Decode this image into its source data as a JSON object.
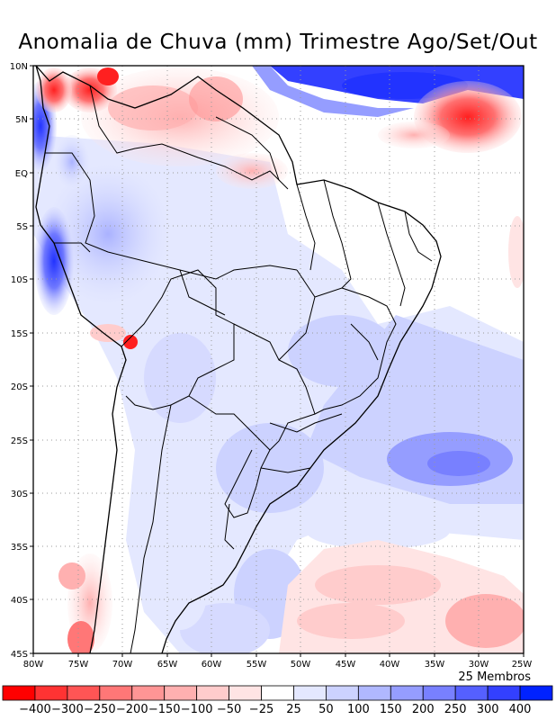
{
  "title": "Anomalia de Chuva (mm) Trimestre Ago/Set/Out",
  "members_label": "25 Membros",
  "latitude_labels": [
    "10N",
    "5N",
    "EQ",
    "5S",
    "10S",
    "15S",
    "20S",
    "25S",
    "30S",
    "35S",
    "40S",
    "45S"
  ],
  "longitude_labels": [
    "80W",
    "75W",
    "70W",
    "65W",
    "60W",
    "55W",
    "50W",
    "45W",
    "40W",
    "35W",
    "30W",
    "25W"
  ],
  "colorbar": {
    "tick_labels": [
      "-400",
      "-300",
      "-250",
      "-200",
      "-150",
      "-100",
      "-50",
      "-25",
      "25",
      "50",
      "100",
      "150",
      "200",
      "250",
      "300",
      "400"
    ],
    "colors": [
      "#ff0000",
      "#ff3333",
      "#ff5555",
      "#ff7777",
      "#ff9595",
      "#ffb0b0",
      "#ffcccc",
      "#ffe4e4",
      "#ffffff",
      "#e4e8ff",
      "#ccd2ff",
      "#b0b8ff",
      "#959dff",
      "#7880ff",
      "#5560ff",
      "#3340ff",
      "#0022ff"
    ]
  }
}
